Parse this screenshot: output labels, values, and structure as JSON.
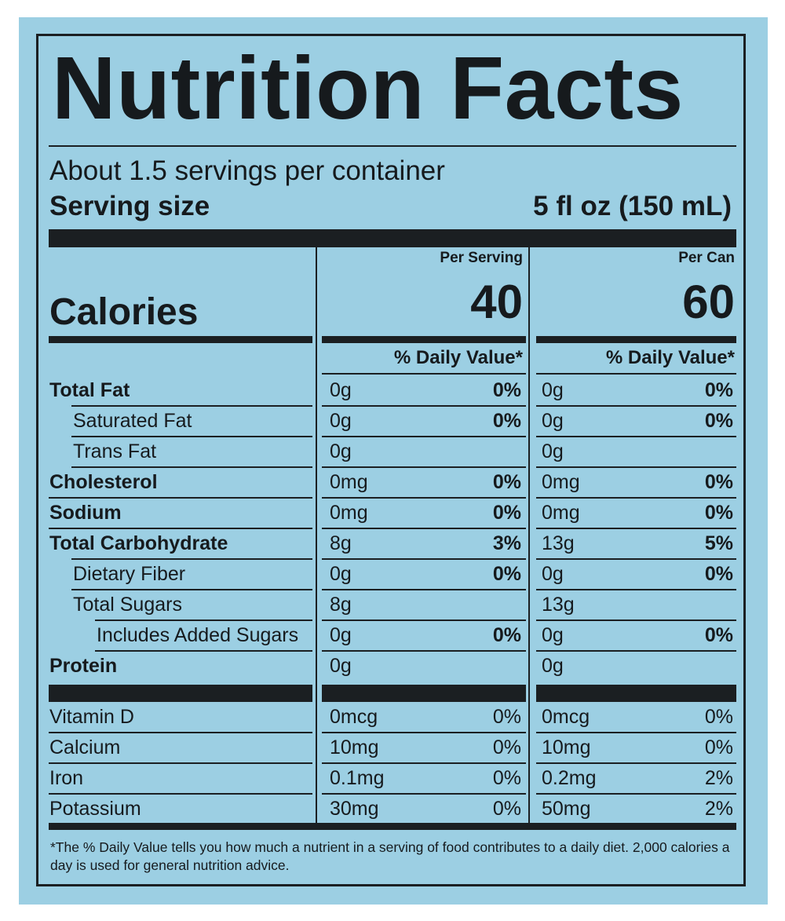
{
  "title": "Nutrition Facts",
  "servings_per_container": "About 1.5 servings per container",
  "serving_size_label": "Serving size",
  "serving_size_value": "5 fl oz (150 mL)",
  "columns": [
    {
      "header": "Per Serving",
      "calories": "40",
      "dv_header": "% Daily Value*"
    },
    {
      "header": "Per Can",
      "calories": "60",
      "dv_header": "% Daily Value*"
    }
  ],
  "calories_label": "Calories",
  "nutrients": [
    {
      "name": "Total Fat",
      "bold": true,
      "indent": 0,
      "serving": "0g",
      "serving_dv": "0%",
      "can": "0g",
      "can_dv": "0%"
    },
    {
      "name": "Saturated Fat",
      "bold": false,
      "indent": 1,
      "serving": "0g",
      "serving_dv": "0%",
      "can": "0g",
      "can_dv": "0%"
    },
    {
      "name": "Trans Fat",
      "bold": false,
      "indent": 1,
      "serving": "0g",
      "serving_dv": "",
      "can": "0g",
      "can_dv": ""
    },
    {
      "name": "Cholesterol",
      "bold": true,
      "indent": 0,
      "serving": "0mg",
      "serving_dv": "0%",
      "can": "0mg",
      "can_dv": "0%"
    },
    {
      "name": "Sodium",
      "bold": true,
      "indent": 0,
      "serving": "0mg",
      "serving_dv": "0%",
      "can": "0mg",
      "can_dv": "0%"
    },
    {
      "name": "Total Carbohydrate",
      "bold": true,
      "indent": 0,
      "serving": "8g",
      "serving_dv": "3%",
      "can": "13g",
      "can_dv": "5%"
    },
    {
      "name": "Dietary Fiber",
      "bold": false,
      "indent": 1,
      "serving": "0g",
      "serving_dv": "0%",
      "can": "0g",
      "can_dv": "0%"
    },
    {
      "name": "Total Sugars",
      "bold": false,
      "indent": 1,
      "serving": "8g",
      "serving_dv": "",
      "can": "13g",
      "can_dv": ""
    },
    {
      "name": "Includes Added Sugars",
      "bold": false,
      "indent": 2,
      "serving": "0g",
      "serving_dv": "0%",
      "can": "0g",
      "can_dv": "0%"
    },
    {
      "name": "Protein",
      "bold": true,
      "indent": 0,
      "serving": "0g",
      "serving_dv": "",
      "can": "0g",
      "can_dv": ""
    }
  ],
  "vitamins": [
    {
      "name": "Vitamin D",
      "serving": "0mcg",
      "serving_dv": "0%",
      "can": "0mcg",
      "can_dv": "0%"
    },
    {
      "name": "Calcium",
      "serving": "10mg",
      "serving_dv": "0%",
      "can": "10mg",
      "can_dv": "0%"
    },
    {
      "name": "Iron",
      "serving": "0.1mg",
      "serving_dv": "0%",
      "can": "0.2mg",
      "can_dv": "2%"
    },
    {
      "name": "Potassium",
      "serving": "30mg",
      "serving_dv": "0%",
      "can": "50mg",
      "can_dv": "2%"
    }
  ],
  "footnote": "*The % Daily Value tells you how much a nutrient in a serving of food contributes to a daily diet. 2,000 calories a day is used for general nutrition advice.",
  "colors": {
    "background": "#9ccfe3",
    "ink": "#1b1f22"
  }
}
